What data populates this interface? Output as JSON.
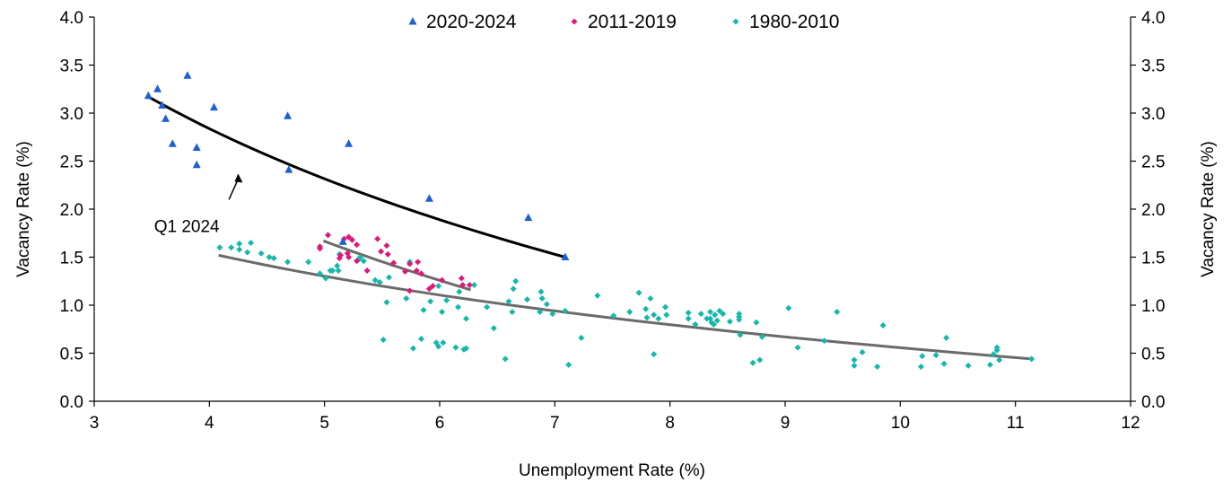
{
  "chart_data": {
    "type": "scatter",
    "xlabel": "Unemployment Rate (%)",
    "ylabel_left": "Vacancy Rate (%)",
    "ylabel_right": "Vacancy Rate (%)",
    "xlim": [
      3,
      12
    ],
    "ylim": [
      0,
      4
    ],
    "xticks": [
      "3",
      "4",
      "5",
      "6",
      "7",
      "8",
      "9",
      "10",
      "11",
      "12"
    ],
    "yticks": [
      "0.0",
      "0.5",
      "1.0",
      "1.5",
      "2.0",
      "2.5",
      "3.0",
      "3.5",
      "4.0"
    ],
    "grid": false,
    "legend_position": "top-center",
    "annotation": {
      "text": "Q1 2024",
      "text_at": [
        3.52,
        1.95
      ],
      "arrow_from": [
        4.17,
        2.1
      ],
      "arrow_to": [
        4.25,
        2.37
      ]
    },
    "series": [
      {
        "name": "2020-2024",
        "marker": "triangle",
        "color": "#1f5fd6",
        "points": [
          [
            3.47,
            3.18
          ],
          [
            3.55,
            3.25
          ],
          [
            3.59,
            3.08
          ],
          [
            3.62,
            2.94
          ],
          [
            3.68,
            2.68
          ],
          [
            3.81,
            3.39
          ],
          [
            3.89,
            2.64
          ],
          [
            3.89,
            2.46
          ],
          [
            4.04,
            3.06
          ],
          [
            4.68,
            2.97
          ],
          [
            4.69,
            2.41
          ],
          [
            5.21,
            2.68
          ],
          [
            5.91,
            2.11
          ],
          [
            6.77,
            1.91
          ],
          [
            7.09,
            1.5
          ],
          [
            5.16,
            1.66
          ]
        ],
        "trendline": {
          "type": "log",
          "x_range": [
            3.47,
            7.09
          ],
          "y_at_ends": [
            3.17,
            1.5
          ],
          "color": "#000000"
        }
      },
      {
        "name": "2011-2019",
        "marker": "diamond",
        "color": "#e0177a",
        "points": [
          [
            5.03,
            1.73
          ],
          [
            4.96,
            1.61
          ],
          [
            4.96,
            1.59
          ],
          [
            5.17,
            1.69
          ],
          [
            5.21,
            1.71
          ],
          [
            5.24,
            1.68
          ],
          [
            5.28,
            1.63
          ],
          [
            5.2,
            1.54
          ],
          [
            5.21,
            1.5
          ],
          [
            5.13,
            1.49
          ],
          [
            5.14,
            1.52
          ],
          [
            5.28,
            1.46
          ],
          [
            5.37,
            1.36
          ],
          [
            5.46,
            1.69
          ],
          [
            5.49,
            1.56
          ],
          [
            5.54,
            1.62
          ],
          [
            5.55,
            1.53
          ],
          [
            5.6,
            1.44
          ],
          [
            5.7,
            1.35
          ],
          [
            5.74,
            1.43
          ],
          [
            5.81,
            1.45
          ],
          [
            5.8,
            1.36
          ],
          [
            5.84,
            1.33
          ],
          [
            6.02,
            1.26
          ],
          [
            5.94,
            1.2
          ],
          [
            5.91,
            1.17
          ],
          [
            6.19,
            1.28
          ],
          [
            6.2,
            1.21
          ],
          [
            6.26,
            1.21
          ],
          [
            5.74,
            1.15
          ]
        ],
        "trendline": {
          "type": "log",
          "x_range": [
            4.99,
            6.27
          ],
          "y_at_ends": [
            1.67,
            1.16
          ],
          "color": "#6b6b6b"
        }
      },
      {
        "name": "1980-2010",
        "marker": "diamond",
        "color": "#14b8aa",
        "points": [
          [
            4.09,
            1.6
          ],
          [
            4.19,
            1.6
          ],
          [
            4.26,
            1.64
          ],
          [
            4.26,
            1.58
          ],
          [
            4.36,
            1.65
          ],
          [
            4.33,
            1.55
          ],
          [
            4.45,
            1.54
          ],
          [
            4.52,
            1.5
          ],
          [
            4.56,
            1.49
          ],
          [
            4.68,
            1.45
          ],
          [
            4.86,
            1.45
          ],
          [
            4.96,
            1.33
          ],
          [
            5.01,
            1.28
          ],
          [
            5.05,
            1.36
          ],
          [
            5.07,
            1.36
          ],
          [
            5.12,
            1.36
          ],
          [
            5.11,
            1.41
          ],
          [
            5.13,
            1.53
          ],
          [
            5.3,
            1.48
          ],
          [
            5.34,
            1.46
          ],
          [
            5.31,
            1.5
          ],
          [
            5.44,
            1.26
          ],
          [
            5.48,
            1.24
          ],
          [
            5.56,
            1.29
          ],
          [
            5.54,
            1.03
          ],
          [
            5.74,
            1.45
          ],
          [
            5.71,
            1.07
          ],
          [
            5.92,
            1.04
          ],
          [
            5.99,
            1.2
          ],
          [
            5.86,
            0.95
          ],
          [
            6.02,
            0.93
          ],
          [
            6.06,
            1.05
          ],
          [
            6.16,
            0.98
          ],
          [
            6.17,
            1.14
          ],
          [
            6.23,
            0.86
          ],
          [
            6.3,
            1.21
          ],
          [
            6.41,
            0.98
          ],
          [
            6.47,
            0.76
          ],
          [
            6.6,
            1.04
          ],
          [
            6.63,
            0.93
          ],
          [
            6.64,
            1.17
          ],
          [
            6.66,
            1.25
          ],
          [
            6.76,
            1.06
          ],
          [
            6.88,
            1.14
          ],
          [
            6.89,
            1.07
          ],
          [
            6.93,
            1.01
          ],
          [
            6.87,
            0.93
          ],
          [
            6.98,
            0.91
          ],
          [
            5.51,
            0.64
          ],
          [
            5.84,
            0.65
          ],
          [
            5.77,
            0.55
          ],
          [
            5.97,
            0.61
          ],
          [
            5.99,
            0.57
          ],
          [
            6.03,
            0.61
          ],
          [
            6.14,
            0.56
          ],
          [
            6.21,
            0.54
          ],
          [
            6.23,
            0.55
          ],
          [
            6.57,
            0.44
          ],
          [
            7.12,
            0.38
          ],
          [
            7.09,
            0.94
          ],
          [
            7.23,
            0.66
          ],
          [
            7.37,
            1.1
          ],
          [
            7.51,
            0.89
          ],
          [
            7.65,
            0.93
          ],
          [
            7.73,
            1.13
          ],
          [
            7.79,
            0.96
          ],
          [
            7.8,
            0.87
          ],
          [
            7.83,
            1.07
          ],
          [
            7.86,
            0.9
          ],
          [
            7.86,
            0.49
          ],
          [
            7.9,
            0.86
          ],
          [
            7.96,
            0.98
          ],
          [
            7.97,
            0.9
          ],
          [
            8.16,
            0.92
          ],
          [
            8.16,
            0.86
          ],
          [
            8.22,
            0.8
          ],
          [
            8.27,
            0.91
          ],
          [
            8.32,
            0.86
          ],
          [
            8.35,
            0.93
          ],
          [
            8.35,
            0.86
          ],
          [
            8.36,
            0.82
          ],
          [
            8.38,
            0.8
          ],
          [
            8.39,
            0.9
          ],
          [
            8.41,
            0.84
          ],
          [
            8.43,
            0.94
          ],
          [
            8.46,
            0.91
          ],
          [
            8.52,
            0.83
          ],
          [
            8.6,
            0.91
          ],
          [
            8.6,
            0.88
          ],
          [
            8.6,
            0.85
          ],
          [
            8.61,
            0.69
          ],
          [
            8.72,
            0.4
          ],
          [
            8.75,
            0.82
          ],
          [
            8.78,
            0.43
          ],
          [
            8.8,
            0.67
          ],
          [
            9.03,
            0.97
          ],
          [
            9.11,
            0.56
          ],
          [
            9.34,
            0.63
          ],
          [
            9.45,
            0.93
          ],
          [
            9.6,
            0.43
          ],
          [
            9.6,
            0.37
          ],
          [
            9.67,
            0.51
          ],
          [
            9.8,
            0.36
          ],
          [
            9.85,
            0.79
          ],
          [
            10.19,
            0.47
          ],
          [
            10.18,
            0.36
          ],
          [
            10.31,
            0.48
          ],
          [
            10.38,
            0.39
          ],
          [
            10.4,
            0.66
          ],
          [
            10.59,
            0.37
          ],
          [
            10.78,
            0.38
          ],
          [
            10.81,
            0.49
          ],
          [
            10.84,
            0.56
          ],
          [
            10.84,
            0.53
          ],
          [
            10.86,
            0.43
          ],
          [
            11.14,
            0.44
          ]
        ],
        "trendline": {
          "type": "log",
          "x_range": [
            4.08,
            11.15
          ],
          "y_at_ends": [
            1.52,
            0.44
          ],
          "color": "#6b6b6b"
        }
      }
    ]
  }
}
